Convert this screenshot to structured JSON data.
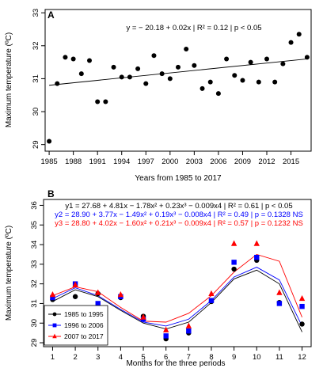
{
  "chart_data": [
    {
      "panel": "A",
      "type": "scatter",
      "xlabel": "Years from 1985 to 2017",
      "ylabel": "Maximum temperature (ºC)",
      "xlim": [
        1984.5,
        2017.5
      ],
      "ylim": [
        28.8,
        33.1
      ],
      "xticks": [
        1985,
        1988,
        1991,
        1994,
        1997,
        2000,
        2003,
        2006,
        2009,
        2012,
        2015
      ],
      "yticks": [
        29,
        30,
        31,
        32,
        33
      ],
      "annotation": "y = − 20.18 + 0.02x | R² = 0.12 | p < 0.05",
      "x": [
        1985,
        1986,
        1987,
        1988,
        1989,
        1990,
        1991,
        1992,
        1993,
        1994,
        1995,
        1996,
        1997,
        1998,
        1999,
        2000,
        2001,
        2002,
        2003,
        2004,
        2005,
        2006,
        2007,
        2008,
        2009,
        2010,
        2011,
        2012,
        2013,
        2014,
        2015,
        2016,
        2017
      ],
      "y": [
        29.1,
        30.85,
        31.65,
        31.6,
        31.15,
        31.55,
        30.3,
        30.3,
        31.35,
        31.05,
        31.05,
        31.3,
        30.85,
        31.7,
        31.15,
        31.0,
        31.35,
        31.9,
        31.4,
        30.7,
        30.9,
        30.55,
        31.6,
        31.1,
        30.95,
        31.5,
        30.9,
        31.6,
        30.9,
        31.45,
        32.1,
        32.35,
        31.65
      ],
      "trend": {
        "x": [
          1985,
          2017
        ],
        "y": [
          30.8,
          31.6
        ]
      },
      "grid": false
    },
    {
      "panel": "B",
      "type": "line",
      "xlabel": "Months for the three periods",
      "ylabel": "Maximum temperature (ºC)",
      "xlim": [
        0.6,
        12.4
      ],
      "ylim": [
        28.8,
        36.3
      ],
      "x": [
        1,
        2,
        3,
        4,
        5,
        6,
        7,
        8,
        9,
        10,
        11,
        12
      ],
      "xticks": [
        1,
        2,
        3,
        4,
        5,
        6,
        7,
        8,
        9,
        10,
        11,
        12
      ],
      "yticks": [
        29,
        30,
        31,
        32,
        33,
        34,
        35,
        36
      ],
      "legend_position": "bottom-left",
      "grid": false,
      "equations": [
        {
          "text": "y1 = 27.68 + 4.81x − 1.78x² + 0.23x³ − 0.009x4 | R² = 0.61 | p < 0.05",
          "color": "#000000"
        },
        {
          "text": "y2 = 28.90 + 3.77x − 1.49x² + 0.19x³ − 0.008x4 | R² = 0.49 | p = 0.1328 NS",
          "color": "#0000ff"
        },
        {
          "text": "y3 = 28.80 + 4.02x − 1.60x² + 0.21x³ − 0.009x4 | R² = 0.57 | p = 0.1232 NS",
          "color": "#ff0000"
        }
      ],
      "series": [
        {
          "name": "1985 to 1995",
          "color": "#000000",
          "marker": "circle",
          "points": [
            31.2,
            31.35,
            31.5,
            31.3,
            30.35,
            29.2,
            29.5,
            31.1,
            32.75,
            33.2,
            31.05,
            29.95
          ],
          "fit": [
            31.1,
            31.7,
            31.35,
            30.65,
            30.0,
            29.7,
            30.05,
            31.05,
            32.25,
            32.7,
            32.0,
            29.55
          ]
        },
        {
          "name": "1996 to 2006",
          "color": "#0000ff",
          "marker": "square",
          "points": [
            31.3,
            32.0,
            31.0,
            31.35,
            30.2,
            29.35,
            29.6,
            31.15,
            33.1,
            33.35,
            31.0,
            30.85
          ],
          "fit": [
            31.25,
            31.8,
            31.4,
            30.7,
            30.05,
            29.85,
            30.2,
            31.15,
            32.35,
            32.85,
            32.2,
            29.85
          ]
        },
        {
          "name": "2007 to 2017",
          "color": "#ff0000",
          "marker": "triangle",
          "points": [
            31.45,
            31.95,
            31.55,
            31.45,
            30.3,
            29.65,
            29.85,
            31.5,
            34.05,
            34.05,
            31.55,
            31.25
          ],
          "fit": [
            31.4,
            31.85,
            31.6,
            30.8,
            30.1,
            30.05,
            30.5,
            31.4,
            32.6,
            33.5,
            33.15,
            30.3
          ]
        }
      ]
    }
  ]
}
